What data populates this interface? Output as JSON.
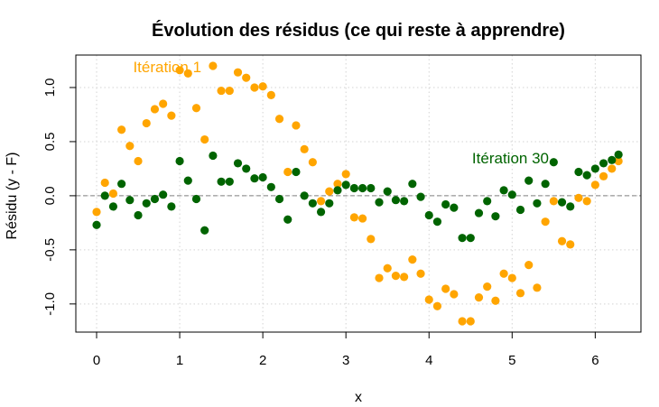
{
  "chart_data": {
    "type": "scatter",
    "title": "Évolution des résidus (ce qui reste à apprendre)",
    "xlabel": "x",
    "ylabel": "Résidu (y - F)",
    "xlim": [
      -0.25,
      6.55
    ],
    "ylim": [
      -1.26,
      1.3
    ],
    "x_ticks": [
      0,
      1,
      2,
      3,
      4,
      5,
      6
    ],
    "y_ticks": [
      -1.0,
      -0.5,
      0.0,
      0.5,
      1.0
    ],
    "x_tick_labels": [
      "0",
      "1",
      "2",
      "3",
      "4",
      "5",
      "6"
    ],
    "y_tick_labels": [
      "-1.0",
      "-0.5",
      "0.0",
      "0.5",
      "1.0"
    ],
    "grid": true,
    "reference_line_y": 0,
    "x": [
      0.0,
      0.1,
      0.2,
      0.3,
      0.4,
      0.5,
      0.6,
      0.7,
      0.8,
      0.9,
      1.0,
      1.1,
      1.2,
      1.3,
      1.4,
      1.5,
      1.6,
      1.7,
      1.8,
      1.9,
      2.0,
      2.1,
      2.2,
      2.3,
      2.4,
      2.5,
      2.6,
      2.7,
      2.8,
      2.9,
      3.0,
      3.1,
      3.2,
      3.3,
      3.4,
      3.5,
      3.6,
      3.7,
      3.8,
      3.9,
      4.0,
      4.1,
      4.2,
      4.3,
      4.4,
      4.5,
      4.6,
      4.7,
      4.8,
      4.9,
      5.0,
      5.1,
      5.2,
      5.3,
      5.4,
      5.5,
      5.6,
      5.7,
      5.8,
      5.9,
      6.0,
      6.1,
      6.2,
      6.28
    ],
    "series": [
      {
        "name": "Itération 1",
        "color": "#FFA500",
        "values": [
          -0.15,
          0.12,
          0.02,
          0.61,
          0.46,
          0.32,
          0.67,
          0.8,
          0.85,
          0.74,
          1.16,
          1.13,
          0.81,
          0.52,
          1.2,
          0.97,
          0.97,
          1.14,
          1.09,
          1.0,
          1.01,
          0.93,
          0.71,
          0.22,
          0.65,
          0.43,
          0.31,
          -0.05,
          0.04,
          0.11,
          0.2,
          -0.2,
          -0.21,
          -0.4,
          -0.76,
          -0.67,
          -0.74,
          -0.75,
          -0.59,
          -0.72,
          -0.96,
          -1.02,
          -0.86,
          -0.91,
          -1.16,
          -1.16,
          -0.94,
          -0.84,
          -0.97,
          -0.72,
          -0.76,
          -0.9,
          -0.64,
          -0.85,
          -0.24,
          -0.05,
          -0.42,
          -0.45,
          -0.02,
          -0.05,
          0.1,
          0.18,
          0.25,
          0.32
        ]
      },
      {
        "name": "Itération 30",
        "color": "#006400",
        "values": [
          -0.27,
          0.0,
          -0.1,
          0.11,
          -0.04,
          -0.18,
          -0.07,
          -0.03,
          0.01,
          -0.1,
          0.32,
          0.14,
          -0.03,
          -0.32,
          0.37,
          0.13,
          0.13,
          0.3,
          0.25,
          0.16,
          0.17,
          0.08,
          -0.03,
          -0.22,
          0.22,
          0.0,
          -0.07,
          -0.15,
          -0.07,
          0.05,
          0.1,
          0.07,
          0.07,
          0.07,
          -0.06,
          0.04,
          -0.04,
          -0.05,
          0.11,
          -0.01,
          -0.18,
          -0.24,
          -0.08,
          -0.11,
          -0.39,
          -0.39,
          -0.16,
          -0.05,
          -0.19,
          0.05,
          0.01,
          -0.13,
          0.14,
          -0.07,
          0.11,
          0.31,
          -0.06,
          -0.1,
          0.22,
          0.19,
          0.25,
          0.3,
          0.33,
          0.38
        ]
      }
    ],
    "annotations": [
      {
        "text": "Itération 1",
        "x": 0.85,
        "y": 1.19,
        "color": "#FFA500"
      },
      {
        "text": "Itération 30",
        "x": 4.98,
        "y": 0.35,
        "color": "#006400"
      }
    ]
  }
}
